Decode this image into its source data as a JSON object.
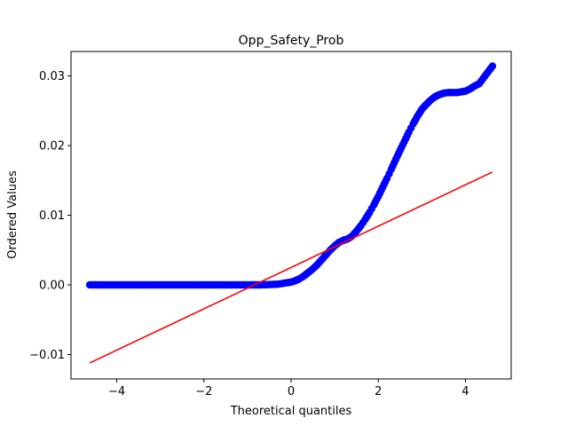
{
  "chart_data": {
    "type": "scatter",
    "title": "Opp_Safety_Prob",
    "xlabel": "Theoretical quantiles",
    "ylabel": "Ordered Values",
    "xlim": [
      -5.05,
      5.05
    ],
    "ylim": [
      -0.0135,
      0.0335
    ],
    "x_ticks": [
      -4,
      -2,
      0,
      2,
      4
    ],
    "x_tick_labels": [
      "−4",
      "−2",
      "0",
      "2",
      "4"
    ],
    "y_ticks": [
      -0.01,
      0.0,
      0.01,
      0.02,
      0.03
    ],
    "y_tick_labels": [
      "−0.01",
      "0.00",
      "0.01",
      "0.02",
      "0.03"
    ],
    "grid": false,
    "legend": "none",
    "series": [
      {
        "kind": "points",
        "color": "#0000ff",
        "x": [
          -4.62,
          -4.3,
          -4.0,
          -3.7,
          -3.4,
          -3.0,
          -2.6,
          -2.2,
          -1.8,
          -1.4,
          -1.0,
          -0.7,
          -0.5,
          -0.3,
          -0.2,
          0.0,
          0.1,
          0.2,
          0.3,
          0.4,
          0.5,
          0.6,
          0.7,
          0.8,
          0.9,
          1.0,
          1.1,
          1.2,
          1.3,
          1.4,
          1.5,
          1.6,
          1.7,
          1.8,
          1.9,
          2.0,
          2.1,
          2.2,
          2.3,
          2.4,
          2.5,
          2.6,
          2.7,
          2.8,
          2.9,
          3.0,
          3.1,
          3.2,
          3.3,
          3.4,
          3.5,
          3.6,
          3.7,
          3.8,
          3.9,
          4.0,
          4.1,
          4.2,
          4.32,
          4.45,
          4.62
        ],
        "y": [
          0.0,
          0.0,
          0.0,
          0.0,
          0.0,
          0.0,
          0.0,
          0.0,
          0.0,
          0.0,
          0.0,
          0.0,
          5e-05,
          0.0001,
          0.0002,
          0.0004,
          0.0006,
          0.0009,
          0.0013,
          0.0018,
          0.0023,
          0.0029,
          0.0036,
          0.0043,
          0.005,
          0.0056,
          0.0061,
          0.0064,
          0.0066,
          0.007,
          0.0077,
          0.0085,
          0.0094,
          0.0104,
          0.0115,
          0.0127,
          0.014,
          0.0153,
          0.0166,
          0.018,
          0.0193,
          0.0206,
          0.0219,
          0.0231,
          0.0242,
          0.0252,
          0.0259,
          0.0265,
          0.027,
          0.0273,
          0.0275,
          0.0276,
          0.0276,
          0.0276,
          0.0277,
          0.0278,
          0.0281,
          0.0285,
          0.0289,
          0.03,
          0.0314
        ]
      },
      {
        "kind": "fit-line",
        "color": "#ff0000",
        "x": [
          -4.62,
          4.62
        ],
        "y": [
          -0.0112,
          0.0162
        ]
      }
    ]
  }
}
